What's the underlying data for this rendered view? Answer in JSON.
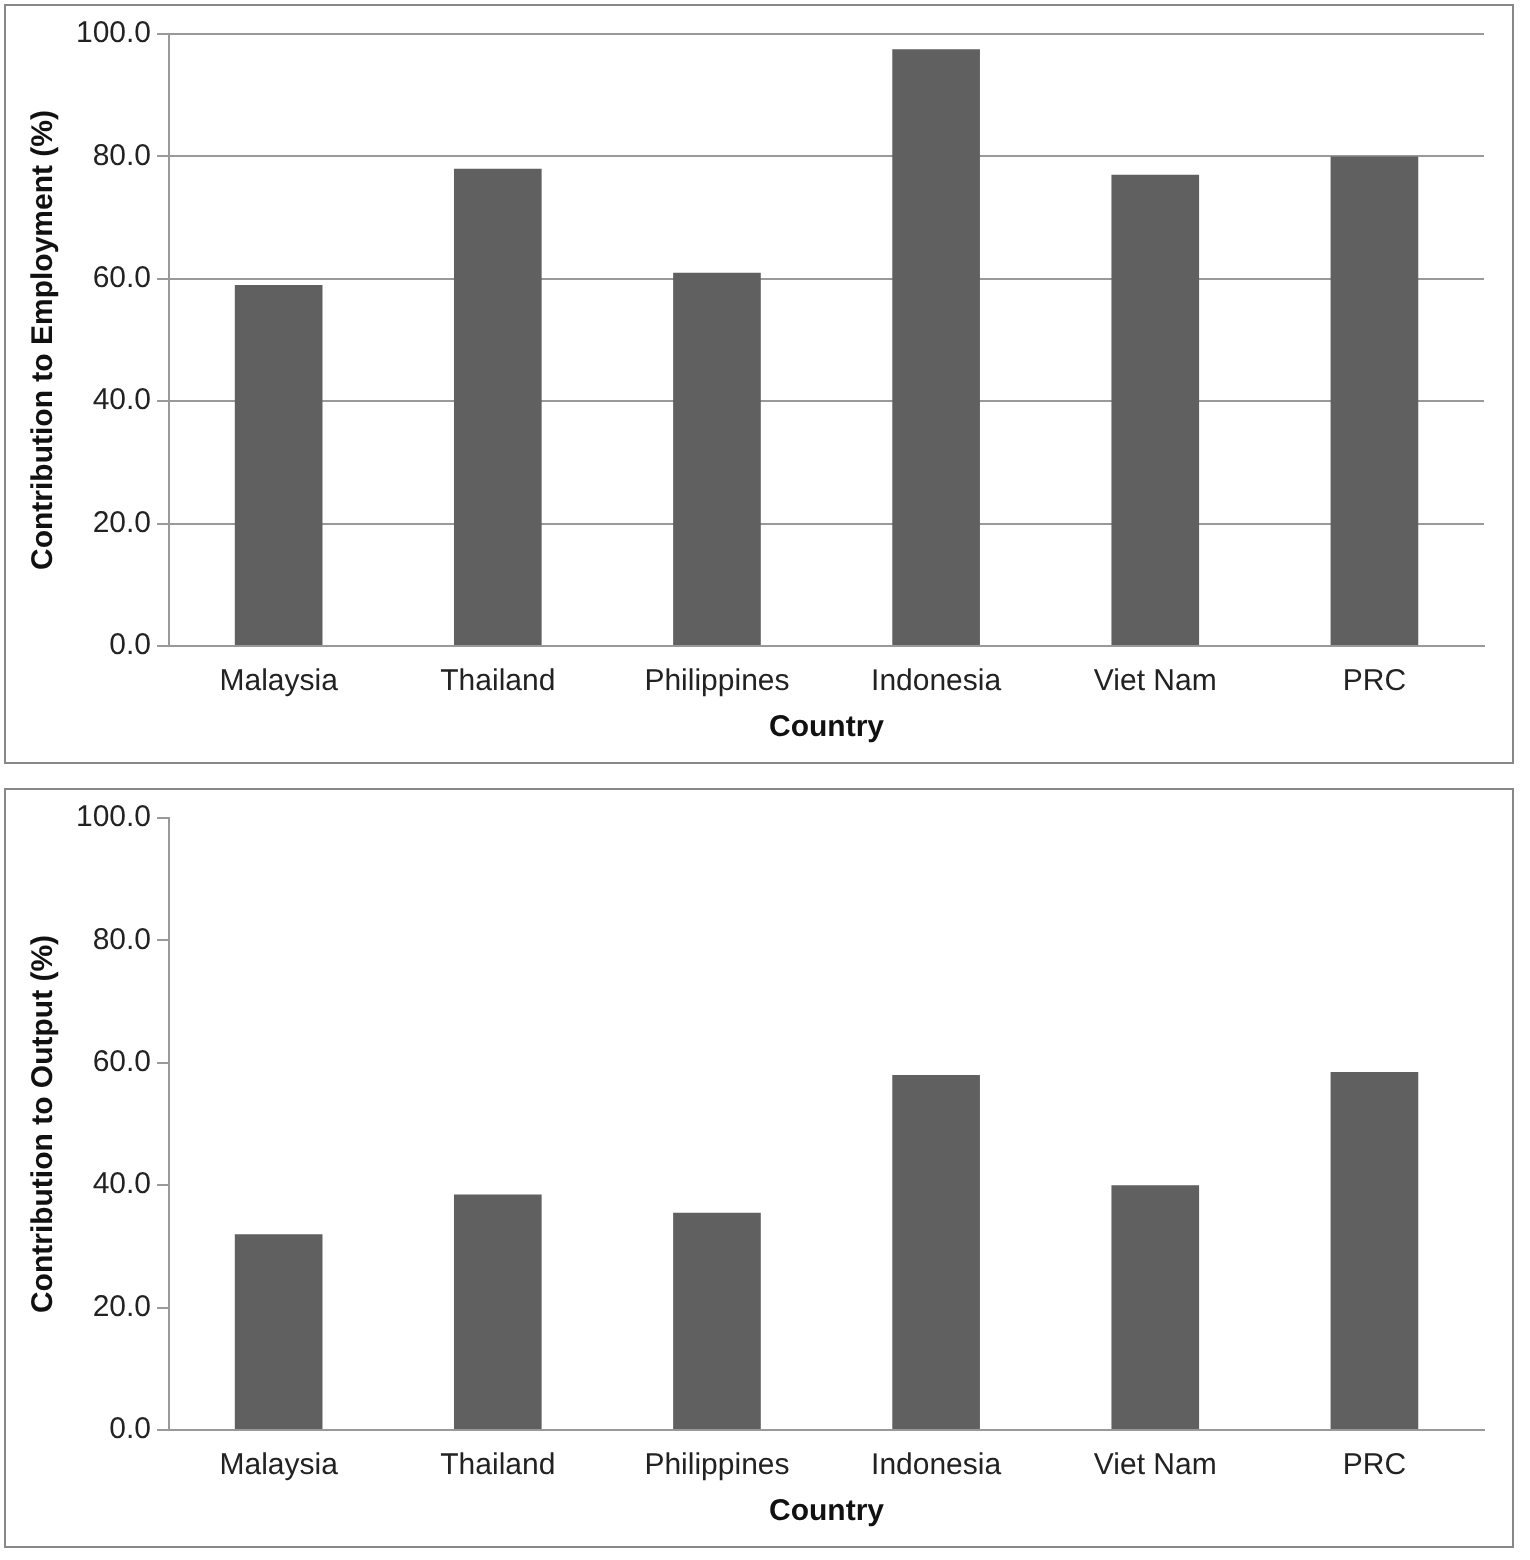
{
  "chart_data": [
    {
      "type": "bar",
      "xlabel": "Country",
      "ylabel": "Contribution to Employment (%)",
      "categories": [
        "Malaysia",
        "Thailand",
        "Philippines",
        "Indonesia",
        "Viet Nam",
        "PRC"
      ],
      "values": [
        59,
        78,
        61,
        97.5,
        77,
        80
      ],
      "color": "#606060",
      "ylim": [
        0,
        100
      ],
      "yticks": [
        {
          "value": 0,
          "label": "0.0"
        },
        {
          "value": 20,
          "label": "20.0"
        },
        {
          "value": 40,
          "label": "40.0"
        },
        {
          "value": 60,
          "label": "60.0"
        },
        {
          "value": 80,
          "label": "80.0"
        },
        {
          "value": 100,
          "label": "100.0"
        }
      ],
      "grid": "y"
    },
    {
      "type": "bar",
      "xlabel": "Country",
      "ylabel": "Contribution to Output (%)",
      "categories": [
        "Malaysia",
        "Thailand",
        "Philippines",
        "Indonesia",
        "Viet Nam",
        "PRC"
      ],
      "values": [
        32,
        38.5,
        35.5,
        58,
        40,
        58.5
      ],
      "color": "#606060",
      "ylim": [
        0,
        100
      ],
      "yticks": [
        {
          "value": 0,
          "label": "0.0"
        },
        {
          "value": 20,
          "label": "20.0"
        },
        {
          "value": 40,
          "label": "40.0"
        },
        {
          "value": 60,
          "label": "60.0"
        },
        {
          "value": 80,
          "label": "80.0"
        },
        {
          "value": 100,
          "label": "100.0"
        }
      ]
    }
  ]
}
